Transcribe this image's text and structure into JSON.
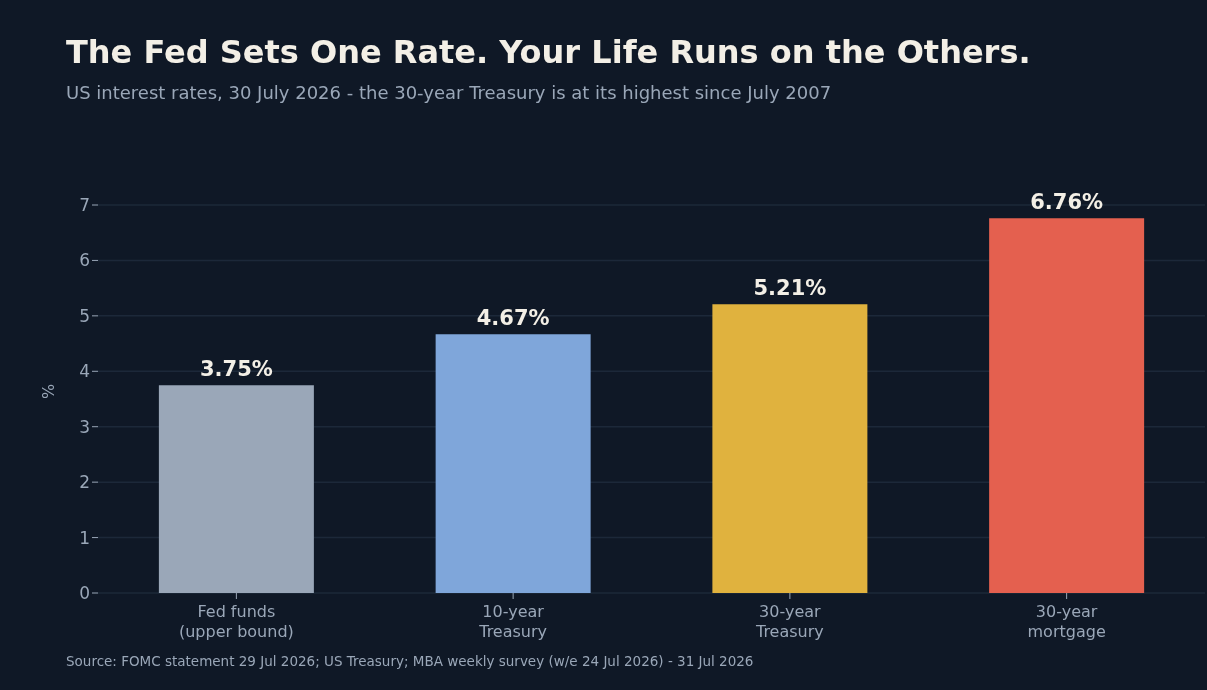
{
  "chart_data": {
    "type": "bar",
    "title": "The Fed Sets One Rate. Your Life Runs on the Others.",
    "subtitle": "US interest rates, 30 July 2026 - the 30-year Treasury is at its highest since July 2007",
    "ylabel": "%",
    "categories": [
      "Fed funds (upper bound)",
      "10-year Treasury",
      "30-year Treasury",
      "30-year mortgage"
    ],
    "values": [
      3.75,
      4.67,
      5.21,
      6.76
    ],
    "colors": [
      "#9aa7b8",
      "#7fa6da",
      "#e0b23e",
      "#e4604f"
    ],
    "value_labels": [
      "3.75%",
      "4.67%",
      "5.21%",
      "6.76%"
    ],
    "ylim": [
      0,
      7
    ],
    "yticks": [
      0,
      1,
      2,
      3,
      4,
      5,
      6,
      7
    ],
    "grid": "y",
    "annotations": [
      "Source: FOMC statement 29 Jul 2026; US Treasury; MBA weekly survey (w/e 24 Jul 2026) - 31 Jul 2026"
    ]
  }
}
